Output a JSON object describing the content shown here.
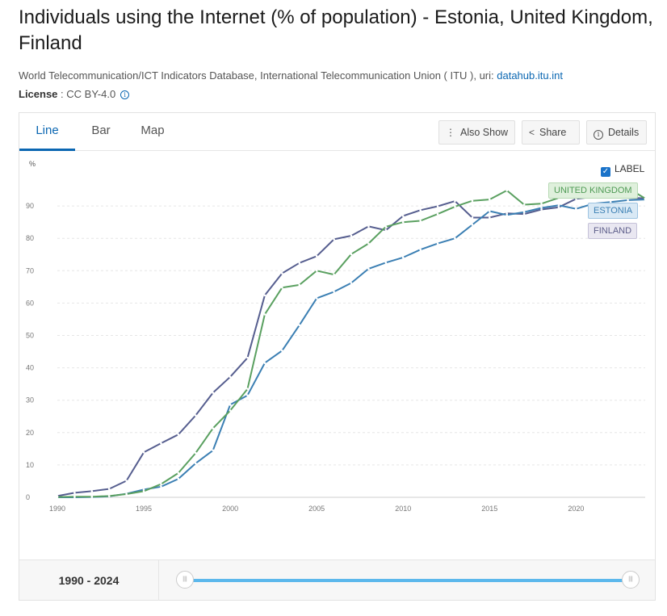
{
  "header": {
    "title": "Individuals using the Internet (% of population) - Estonia, United Kingdom, Finland",
    "source_text": "World Telecommunication/ICT Indicators Database, International Telecommunication Union ( ITU ), uri: ",
    "source_link": "datahub.itu.int",
    "license_label": "License",
    "license_value": " : CC BY-4.0"
  },
  "tabs": [
    {
      "label": "Line",
      "active": true
    },
    {
      "label": "Bar",
      "active": false
    },
    {
      "label": "Map",
      "active": false
    }
  ],
  "toolbar": {
    "also_show": "Also Show",
    "share": "Share",
    "details": "Details"
  },
  "label_toggle": {
    "label": "LABEL",
    "checked": true
  },
  "range": {
    "label": "1990 - 2024",
    "start": 1990,
    "end": 2024
  },
  "colors": {
    "united_kingdom": "#5aa060",
    "estonia": "#3b7fb3",
    "finland": "#565e8f",
    "accent": "#0b67b2",
    "slider": "#5cb8ec"
  },
  "chart_data": {
    "type": "line",
    "ylabel": "%",
    "xlim": [
      1990,
      2024
    ],
    "ylim": [
      0,
      100
    ],
    "yticks": [
      0,
      10,
      20,
      30,
      40,
      50,
      60,
      70,
      80,
      90
    ],
    "xticks": [
      1990,
      1995,
      2000,
      2005,
      2010,
      2015,
      2020
    ],
    "grid": true,
    "legend": "right",
    "series": [
      {
        "name": "UNITED KINGDOM",
        "color": "#5aa060",
        "x": [
          1990,
          1991,
          1992,
          1993,
          1994,
          1995,
          1996,
          1997,
          1998,
          1999,
          2000,
          2001,
          2002,
          2003,
          2004,
          2005,
          2006,
          2007,
          2008,
          2009,
          2010,
          2011,
          2012,
          2013,
          2014,
          2015,
          2016,
          2017,
          2018,
          2019,
          2020,
          2021,
          2022,
          2023,
          2024
        ],
        "values": [
          0.1,
          0.2,
          0.2,
          0.4,
          1.0,
          1.9,
          4.1,
          7.5,
          13.7,
          21.3,
          26.8,
          33.5,
          56.5,
          64.8,
          65.6,
          70.0,
          68.8,
          75.1,
          78.4,
          83.6,
          85.0,
          85.4,
          87.5,
          89.8,
          91.6,
          92.0,
          94.8,
          90.4,
          90.7,
          92.5,
          94.8,
          95.0,
          95.3,
          95.5,
          92.3
        ]
      },
      {
        "name": "ESTONIA",
        "color": "#3b7fb3",
        "x": [
          1990,
          1991,
          1992,
          1993,
          1994,
          1995,
          1996,
          1997,
          1998,
          1999,
          2000,
          2001,
          2002,
          2003,
          2004,
          2005,
          2006,
          2007,
          2008,
          2009,
          2010,
          2011,
          2012,
          2013,
          2014,
          2015,
          2016,
          2017,
          2018,
          2019,
          2020,
          2021,
          2022,
          2023,
          2024
        ],
        "values": [
          0.0,
          0.0,
          0.1,
          0.3,
          1.1,
          2.4,
          3.3,
          5.7,
          10.5,
          14.5,
          28.6,
          31.5,
          41.5,
          45.3,
          53.2,
          61.5,
          63.5,
          66.2,
          70.6,
          72.5,
          74.1,
          76.5,
          78.4,
          80.0,
          84.2,
          88.4,
          87.2,
          88.1,
          89.4,
          90.2,
          89.1,
          90.7,
          91.2,
          91.8,
          92.0
        ]
      },
      {
        "name": "FINLAND",
        "color": "#565e8f",
        "x": [
          1990,
          1991,
          1992,
          1993,
          1994,
          1995,
          1996,
          1997,
          1998,
          1999,
          2000,
          2001,
          2002,
          2003,
          2004,
          2005,
          2006,
          2007,
          2008,
          2009,
          2010,
          2011,
          2012,
          2013,
          2014,
          2015,
          2016,
          2017,
          2018,
          2019,
          2020,
          2021,
          2022,
          2023,
          2024
        ],
        "values": [
          0.4,
          1.4,
          1.9,
          2.6,
          5.1,
          13.9,
          16.7,
          19.4,
          25.3,
          32.3,
          37.2,
          43.1,
          62.4,
          69.2,
          72.4,
          74.5,
          79.7,
          80.8,
          83.7,
          82.5,
          86.9,
          88.7,
          89.9,
          91.5,
          86.4,
          86.4,
          87.7,
          87.5,
          88.9,
          89.6,
          92.2,
          92.8,
          92.8,
          92.5,
          92.4
        ]
      }
    ]
  }
}
